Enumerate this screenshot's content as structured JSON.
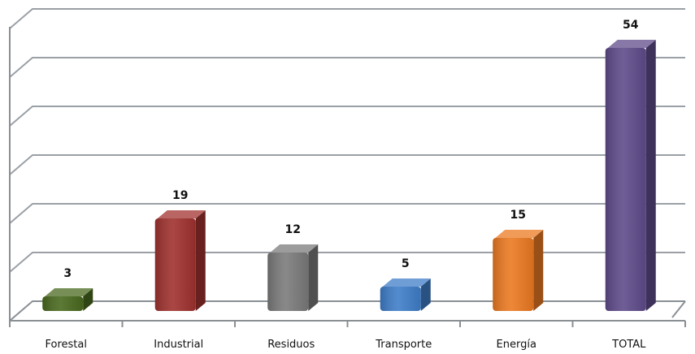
{
  "chart_data": {
    "type": "bar",
    "categories": [
      "Forestal",
      "Industrial",
      "Residuos",
      "Transporte",
      "Energía",
      "TOTAL"
    ],
    "values": [
      3,
      19,
      12,
      5,
      15,
      54
    ],
    "ylim": [
      0,
      60
    ],
    "grid": true,
    "legend": "none",
    "colors": [
      "#4a6a1f",
      "#a0322f",
      "#7b7b7b",
      "#3f7ec9",
      "#ec7a22",
      "#5f4b8b"
    ]
  }
}
